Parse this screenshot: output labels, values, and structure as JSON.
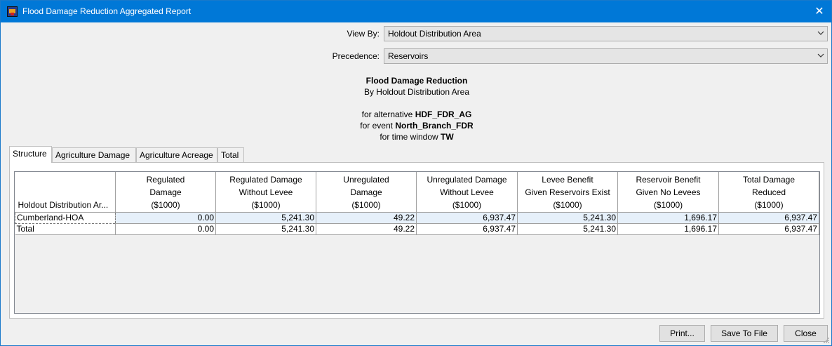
{
  "window": {
    "title": "Flood Damage Reduction Aggregated Report"
  },
  "filters": {
    "view_by_label": "View By:",
    "view_by_value": "Holdout Distribution Area",
    "precedence_label": "Precedence:",
    "precedence_value": "Reservoirs"
  },
  "report": {
    "title": "Flood Damage Reduction",
    "subtitle": "By Holdout Distribution Area",
    "alt_prefix": "for alternative ",
    "alt_value": "HDF_FDR_AG",
    "event_prefix": "for event ",
    "event_value": "North_Branch_FDR",
    "tw_prefix": "for time window ",
    "tw_value": "TW"
  },
  "tabs": [
    "Structure",
    "Agriculture Damage",
    "Agriculture Acreage",
    "Total"
  ],
  "active_tab": "Structure",
  "table": {
    "columns": [
      [
        "Holdout Distribution Ar..."
      ],
      [
        "Regulated",
        "Damage",
        "($1000)"
      ],
      [
        "Regulated Damage",
        "Without Levee",
        "($1000)"
      ],
      [
        "Unregulated",
        "Damage",
        "($1000)"
      ],
      [
        "Unregulated Damage",
        "Without Levee",
        "($1000)"
      ],
      [
        "Levee Benefit",
        "Given Reservoirs Exist",
        "($1000)"
      ],
      [
        "Reservoir Benefit",
        "Given No Levees",
        "($1000)"
      ],
      [
        "Total Damage",
        "Reduced",
        "($1000)"
      ]
    ],
    "rows": [
      [
        "Cumberland-HOA",
        "0.00",
        "5,241.30",
        "49.22",
        "6,937.47",
        "5,241.30",
        "1,696.17",
        "6,937.47"
      ],
      [
        "Total",
        "0.00",
        "5,241.30",
        "49.22",
        "6,937.47",
        "5,241.30",
        "1,696.17",
        "6,937.47"
      ]
    ]
  },
  "buttons": {
    "print": "Print...",
    "save": "Save To File",
    "close": "Close"
  }
}
